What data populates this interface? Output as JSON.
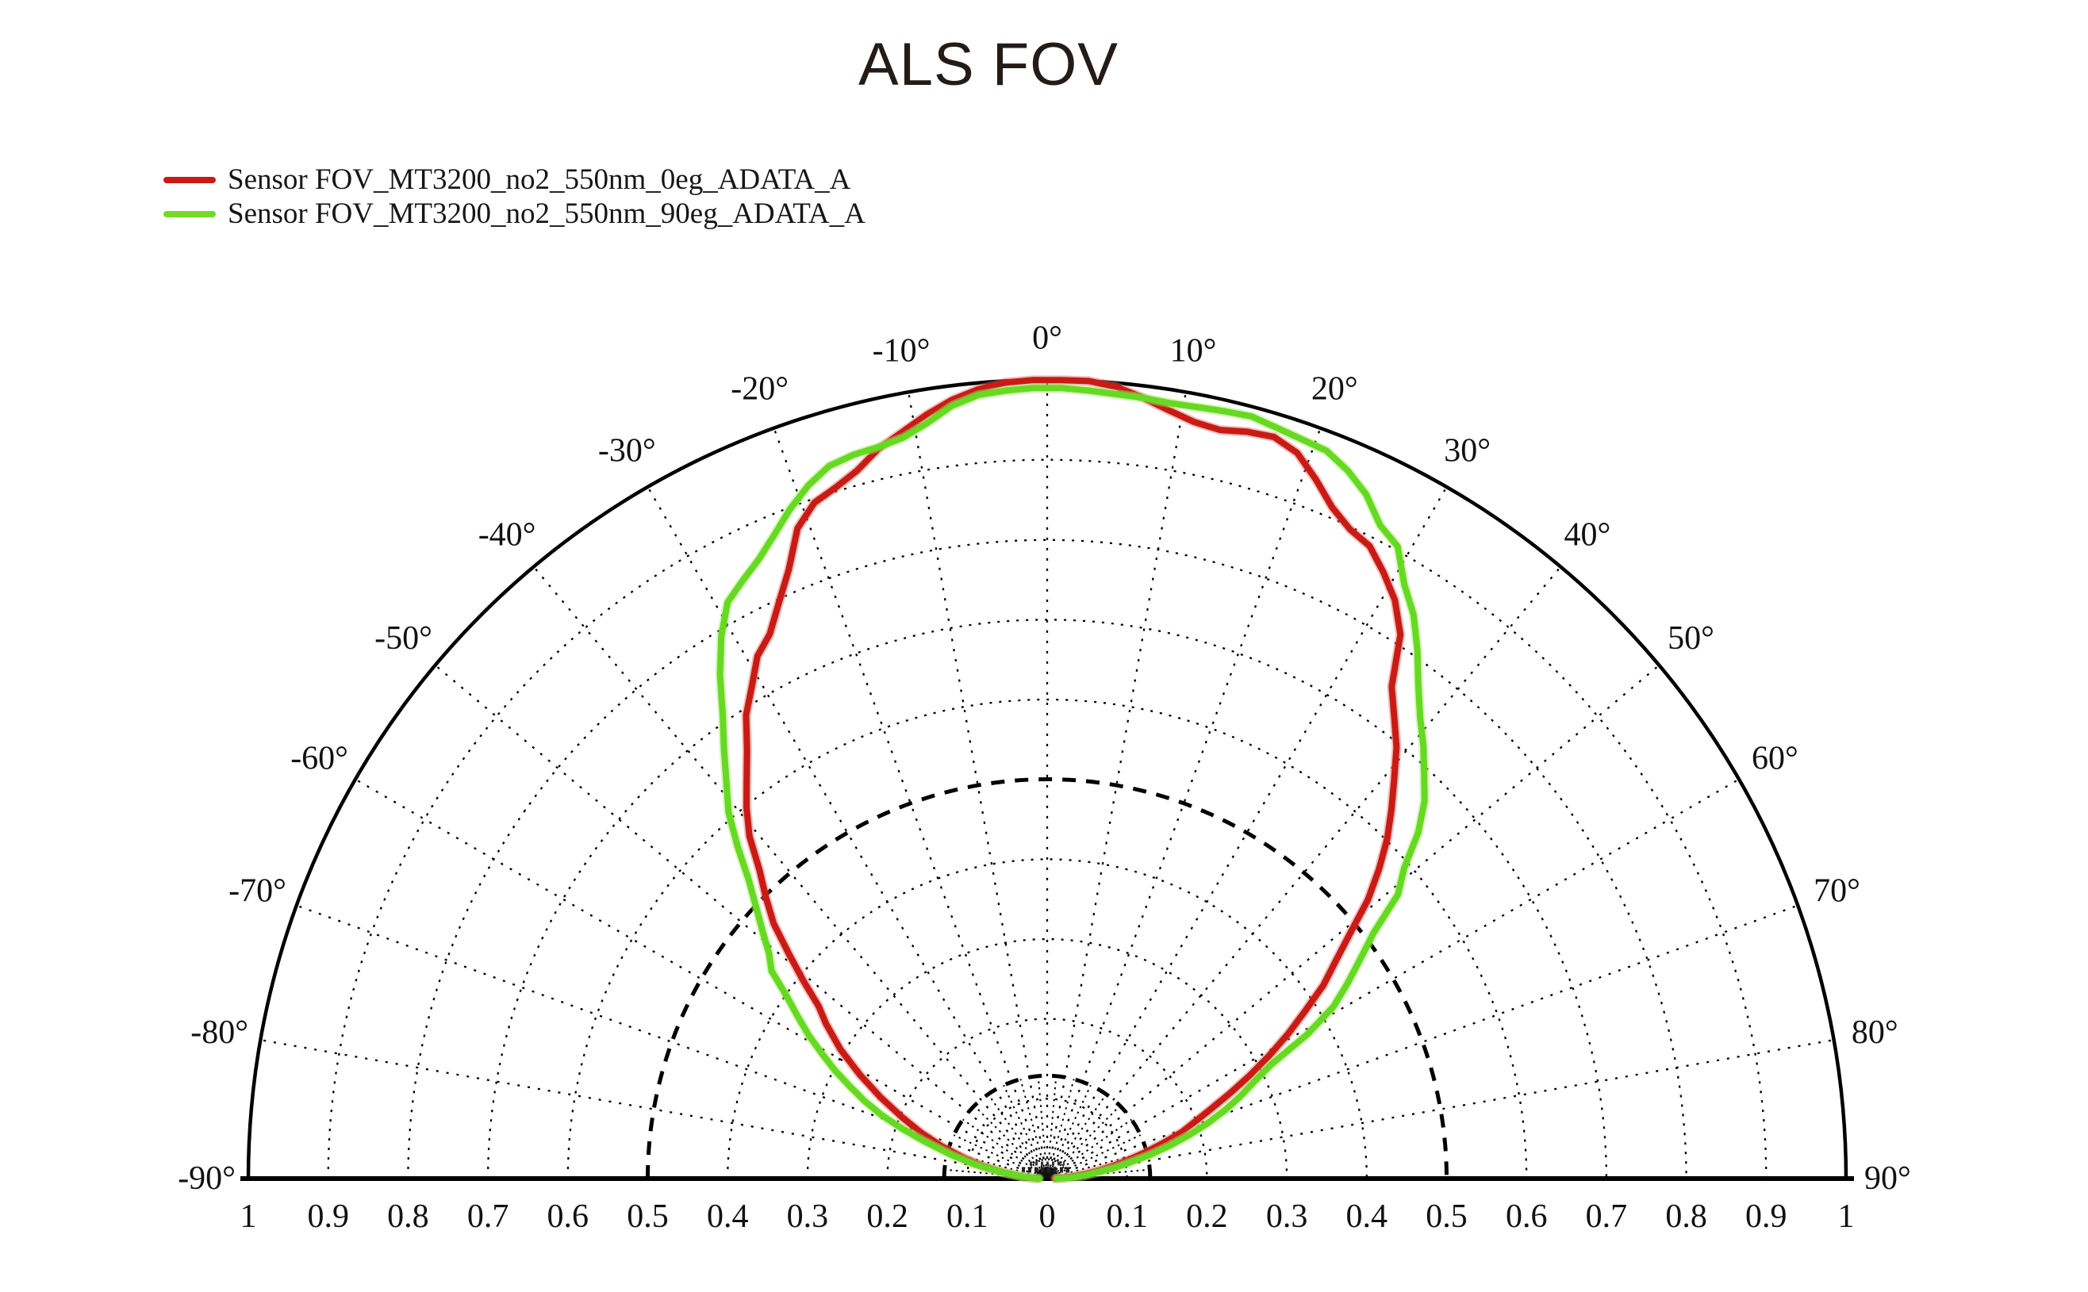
{
  "title": "ALS FOV",
  "legend": {
    "items": [
      {
        "label": "Sensor FOV_MT3200_no2_550nm_0eg_ADATA_A",
        "color": "#c91b15"
      },
      {
        "label": "Sensor FOV_MT3200_no2_550nm_90eg_ADATA_A",
        "color": "#6edc26"
      }
    ]
  },
  "chart_data": {
    "type": "line",
    "projection": "half-polar",
    "title": "ALS FOV",
    "rlim": [
      0,
      1
    ],
    "ring_step": 0.1,
    "bold_rings": [
      0.129,
      0.5
    ],
    "spoke_step_deg": 10,
    "inner_fan_step_deg": 5,
    "inner_fan_max_r": 0.129,
    "grid_color": "#000000",
    "angle_ticks_deg": [
      -90,
      -80,
      -70,
      -60,
      -50,
      -40,
      -30,
      -20,
      -10,
      0,
      10,
      20,
      30,
      40,
      50,
      60,
      70,
      80,
      90
    ],
    "angle_tick_labels": [
      "-90°",
      "-80°",
      "-70°",
      "-60°",
      "-50°",
      "-40°",
      "-30°",
      "-20°",
      "-10°",
      "0°",
      "10°",
      "20°",
      "30°",
      "40°",
      "50°",
      "60°",
      "70°",
      "80°",
      "90°"
    ],
    "radial_tick_labels": [
      "1",
      "0.9",
      "0.8",
      "0.7",
      "0.6",
      "0.5",
      "0.4",
      "0.3",
      "0.2",
      "0.1",
      "0",
      "0.1",
      "0.2",
      "0.3",
      "0.4",
      "0.5",
      "0.6",
      "0.7",
      "0.8",
      "0.9",
      "1"
    ],
    "series": [
      {
        "name": "Sensor FOV_MT3200_no2_550nm_0eg_ADATA_A",
        "color": "#c91b15",
        "halo": "#e4706a",
        "points": [
          [
            -90,
            0.012
          ],
          [
            -88,
            0.018
          ],
          [
            -85,
            0.032
          ],
          [
            -82,
            0.055
          ],
          [
            -79,
            0.082
          ],
          [
            -76,
            0.108
          ],
          [
            -73,
            0.138
          ],
          [
            -70,
            0.168
          ],
          [
            -67,
            0.198
          ],
          [
            -64,
            0.232
          ],
          [
            -61,
            0.268
          ],
          [
            -58,
            0.305
          ],
          [
            -55,
            0.338
          ],
          [
            -53,
            0.358
          ],
          [
            -51,
            0.392
          ],
          [
            -49,
            0.428
          ],
          [
            -47,
            0.468
          ],
          [
            -45,
            0.498
          ],
          [
            -43,
            0.528
          ],
          [
            -41,
            0.568
          ],
          [
            -39,
            0.598
          ],
          [
            -37,
            0.625
          ],
          [
            -35,
            0.655
          ],
          [
            -33,
            0.692
          ],
          [
            -31,
            0.718
          ],
          [
            -29,
            0.748
          ],
          [
            -27,
            0.765
          ],
          [
            -25,
            0.795
          ],
          [
            -23,
            0.828
          ],
          [
            -21,
            0.872
          ],
          [
            -19,
            0.895
          ],
          [
            -17,
            0.905
          ],
          [
            -15,
            0.918
          ],
          [
            -13,
            0.938
          ],
          [
            -11,
            0.952
          ],
          [
            -9,
            0.968
          ],
          [
            -7,
            0.982
          ],
          [
            -5,
            0.992
          ],
          [
            -3,
            0.998
          ],
          [
            -1,
            1.0
          ],
          [
            1,
            1.0
          ],
          [
            3,
            1.0
          ],
          [
            5,
            0.995
          ],
          [
            7,
            0.985
          ],
          [
            9,
            0.974
          ],
          [
            11,
            0.965
          ],
          [
            13,
            0.962
          ],
          [
            15,
            0.968
          ],
          [
            17,
            0.971
          ],
          [
            19,
            0.961
          ],
          [
            21,
            0.938
          ],
          [
            23,
            0.913
          ],
          [
            25,
            0.897
          ],
          [
            27,
            0.889
          ],
          [
            29,
            0.868
          ],
          [
            31,
            0.845
          ],
          [
            33,
            0.812
          ],
          [
            35,
            0.752
          ],
          [
            37,
            0.722
          ],
          [
            39,
            0.695
          ],
          [
            41,
            0.662
          ],
          [
            43,
            0.632
          ],
          [
            45,
            0.602
          ],
          [
            47,
            0.568
          ],
          [
            49,
            0.532
          ],
          [
            51,
            0.488
          ],
          [
            53,
            0.452
          ],
          [
            55,
            0.422
          ],
          [
            57,
            0.385
          ],
          [
            59,
            0.352
          ],
          [
            61,
            0.318
          ],
          [
            63,
            0.285
          ],
          [
            65,
            0.252
          ],
          [
            67,
            0.222
          ],
          [
            69,
            0.198
          ],
          [
            71,
            0.178
          ],
          [
            73,
            0.152
          ],
          [
            75,
            0.128
          ],
          [
            77,
            0.105
          ],
          [
            79,
            0.085
          ],
          [
            81,
            0.065
          ],
          [
            83,
            0.048
          ],
          [
            85,
            0.032
          ],
          [
            87,
            0.02
          ],
          [
            90,
            0.01
          ]
        ]
      },
      {
        "name": "Sensor FOV_MT3200_no2_550nm_90eg_ADATA_A",
        "color": "#66d922",
        "halo": "#a8ec6a",
        "points": [
          [
            -90,
            0.01
          ],
          [
            -88,
            0.016
          ],
          [
            -85,
            0.032
          ],
          [
            -82,
            0.058
          ],
          [
            -79,
            0.092
          ],
          [
            -76,
            0.125
          ],
          [
            -73,
            0.162
          ],
          [
            -71,
            0.192
          ],
          [
            -69,
            0.222
          ],
          [
            -67,
            0.248
          ],
          [
            -65,
            0.272
          ],
          [
            -63,
            0.298
          ],
          [
            -61,
            0.322
          ],
          [
            -59,
            0.348
          ],
          [
            -57,
            0.372
          ],
          [
            -55,
            0.398
          ],
          [
            -53,
            0.432
          ],
          [
            -51,
            0.448
          ],
          [
            -49,
            0.472
          ],
          [
            -47,
            0.498
          ],
          [
            -45,
            0.528
          ],
          [
            -43,
            0.568
          ],
          [
            -41,
            0.608
          ],
          [
            -39,
            0.638
          ],
          [
            -37,
            0.672
          ],
          [
            -35,
            0.708
          ],
          [
            -33,
            0.752
          ],
          [
            -31,
            0.792
          ],
          [
            -29,
            0.825
          ],
          [
            -27,
            0.84
          ],
          [
            -25,
            0.855
          ],
          [
            -23,
            0.875
          ],
          [
            -21,
            0.898
          ],
          [
            -19,
            0.918
          ],
          [
            -17,
            0.933
          ],
          [
            -15,
            0.938
          ],
          [
            -13,
            0.94
          ],
          [
            -11,
            0.945
          ],
          [
            -9,
            0.958
          ],
          [
            -7,
            0.975
          ],
          [
            -5,
            0.985
          ],
          [
            -3,
            0.988
          ],
          [
            -1,
            0.99
          ],
          [
            1,
            0.99
          ],
          [
            3,
            0.988
          ],
          [
            5,
            0.986
          ],
          [
            7,
            0.985
          ],
          [
            9,
            0.983
          ],
          [
            11,
            0.984
          ],
          [
            13,
            0.986
          ],
          [
            15,
            0.988
          ],
          [
            17,
            0.983
          ],
          [
            19,
            0.979
          ],
          [
            21,
            0.976
          ],
          [
            23,
            0.963
          ],
          [
            25,
            0.945
          ],
          [
            27,
            0.918
          ],
          [
            29,
            0.905
          ],
          [
            31,
            0.868
          ],
          [
            33,
            0.842
          ],
          [
            35,
            0.808
          ],
          [
            37,
            0.772
          ],
          [
            39,
            0.742
          ],
          [
            41,
            0.718
          ],
          [
            43,
            0.692
          ],
          [
            45,
            0.668
          ],
          [
            47,
            0.635
          ],
          [
            49,
            0.592
          ],
          [
            51,
            0.565
          ],
          [
            53,
            0.512
          ],
          [
            55,
            0.478
          ],
          [
            57,
            0.448
          ],
          [
            59,
            0.418
          ],
          [
            61,
            0.372
          ],
          [
            63,
            0.315
          ],
          [
            65,
            0.285
          ],
          [
            67,
            0.262
          ],
          [
            69,
            0.238
          ],
          [
            71,
            0.212
          ],
          [
            73,
            0.185
          ],
          [
            75,
            0.158
          ],
          [
            77,
            0.132
          ],
          [
            79,
            0.105
          ],
          [
            81,
            0.085
          ],
          [
            83,
            0.062
          ],
          [
            85,
            0.048
          ],
          [
            87,
            0.034
          ],
          [
            89,
            0.02
          ],
          [
            90,
            0.012
          ]
        ]
      }
    ]
  }
}
